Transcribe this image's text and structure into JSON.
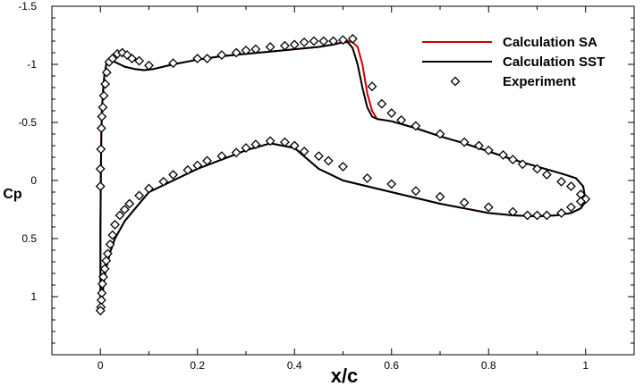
{
  "chart_data": {
    "type": "line",
    "title": "",
    "xlabel": "x/c",
    "ylabel": "Cp",
    "xlim": [
      -0.1,
      1.1
    ],
    "ylim": [
      1.5,
      -1.5
    ],
    "y_inverted": true,
    "grid": false,
    "x_ticks": [
      {
        "value": 0,
        "label": "0"
      },
      {
        "value": 0.2,
        "label": "0.2"
      },
      {
        "value": 0.4,
        "label": "0.4"
      },
      {
        "value": 0.6,
        "label": "0.6"
      },
      {
        "value": 0.8,
        "label": "0.8"
      },
      {
        "value": 1,
        "label": "1"
      }
    ],
    "y_ticks": [
      {
        "value": -1.5,
        "label": "-1.5"
      },
      {
        "value": -1,
        "label": "-1"
      },
      {
        "value": -0.5,
        "label": "-0.5"
      },
      {
        "value": 0,
        "label": "0"
      },
      {
        "value": 0.5,
        "label": "0.5"
      },
      {
        "value": 1,
        "label": "1"
      }
    ],
    "legend_position": "top-right",
    "series": [
      {
        "name": "Calculation SA",
        "kind": "line",
        "color": "#cc0000",
        "x": [
          0.0,
          0.0,
          0.001,
          0.002,
          0.003,
          0.005,
          0.008,
          0.012,
          0.018,
          0.03,
          0.05,
          0.07,
          0.09,
          0.11,
          0.15,
          0.2,
          0.25,
          0.3,
          0.35,
          0.4,
          0.45,
          0.48,
          0.5,
          0.51,
          0.52,
          0.53,
          0.54,
          0.55,
          0.56,
          0.57,
          0.6,
          0.65,
          0.7,
          0.75,
          0.8,
          0.85,
          0.9,
          0.95,
          0.98,
          0.995,
          1.0,
          0.99,
          0.97,
          0.94,
          0.9,
          0.85,
          0.8,
          0.75,
          0.7,
          0.65,
          0.6,
          0.55,
          0.5,
          0.45,
          0.4,
          0.35,
          0.3,
          0.25,
          0.2,
          0.15,
          0.1,
          0.07,
          0.05,
          0.03,
          0.02,
          0.012,
          0.008,
          0.005,
          0.003,
          0.001,
          0.0
        ],
        "y": [
          1.15,
          0.4,
          -0.1,
          -0.4,
          -0.6,
          -0.75,
          -0.9,
          -1.0,
          -1.05,
          -1.02,
          -0.98,
          -0.96,
          -0.95,
          -0.96,
          -1.0,
          -1.04,
          -1.07,
          -1.09,
          -1.11,
          -1.13,
          -1.15,
          -1.17,
          -1.19,
          -1.2,
          -1.19,
          -1.15,
          -1.0,
          -0.75,
          -0.6,
          -0.53,
          -0.51,
          -0.45,
          -0.38,
          -0.32,
          -0.25,
          -0.18,
          -0.12,
          -0.06,
          -0.02,
          0.05,
          0.18,
          0.24,
          0.28,
          0.3,
          0.31,
          0.3,
          0.28,
          0.24,
          0.2,
          0.15,
          0.1,
          0.05,
          0.0,
          -0.1,
          -0.28,
          -0.32,
          -0.26,
          -0.18,
          -0.1,
          0.0,
          0.1,
          0.25,
          0.35,
          0.5,
          0.62,
          0.75,
          0.85,
          0.95,
          1.03,
          1.1,
          1.15
        ]
      },
      {
        "name": "Calculation SST",
        "kind": "line",
        "color": "#000000",
        "x": [
          0.0,
          0.0,
          0.001,
          0.002,
          0.003,
          0.005,
          0.008,
          0.012,
          0.018,
          0.03,
          0.05,
          0.07,
          0.09,
          0.11,
          0.15,
          0.2,
          0.25,
          0.3,
          0.35,
          0.4,
          0.45,
          0.48,
          0.5,
          0.51,
          0.52,
          0.53,
          0.54,
          0.55,
          0.56,
          0.57,
          0.6,
          0.65,
          0.7,
          0.75,
          0.8,
          0.85,
          0.9,
          0.95,
          0.98,
          0.995,
          1.0,
          0.99,
          0.97,
          0.94,
          0.9,
          0.85,
          0.8,
          0.75,
          0.7,
          0.65,
          0.6,
          0.55,
          0.5,
          0.45,
          0.4,
          0.35,
          0.3,
          0.25,
          0.2,
          0.15,
          0.1,
          0.07,
          0.05,
          0.03,
          0.02,
          0.012,
          0.008,
          0.005,
          0.003,
          0.001,
          0.0
        ],
        "y": [
          1.15,
          0.4,
          -0.1,
          -0.4,
          -0.6,
          -0.75,
          -0.9,
          -1.0,
          -1.05,
          -1.02,
          -0.98,
          -0.96,
          -0.95,
          -0.96,
          -1.0,
          -1.04,
          -1.07,
          -1.09,
          -1.11,
          -1.13,
          -1.15,
          -1.17,
          -1.19,
          -1.19,
          -1.14,
          -1.0,
          -0.8,
          -0.63,
          -0.55,
          -0.53,
          -0.51,
          -0.45,
          -0.38,
          -0.32,
          -0.25,
          -0.18,
          -0.12,
          -0.06,
          -0.02,
          0.05,
          0.18,
          0.24,
          0.28,
          0.3,
          0.31,
          0.3,
          0.28,
          0.24,
          0.2,
          0.15,
          0.1,
          0.05,
          0.0,
          -0.1,
          -0.28,
          -0.32,
          -0.26,
          -0.18,
          -0.1,
          0.0,
          0.1,
          0.25,
          0.35,
          0.5,
          0.62,
          0.75,
          0.85,
          0.95,
          1.03,
          1.1,
          1.15
        ]
      },
      {
        "name": "Experiment",
        "kind": "scatter",
        "marker": "diamond",
        "color": "#000000",
        "x": [
          0.0,
          0.0,
          0.001,
          0.002,
          0.003,
          0.005,
          0.007,
          0.01,
          0.013,
          0.018,
          0.025,
          0.035,
          0.045,
          0.055,
          0.065,
          0.08,
          0.1,
          0.15,
          0.2,
          0.22,
          0.25,
          0.28,
          0.3,
          0.32,
          0.35,
          0.38,
          0.4,
          0.42,
          0.44,
          0.46,
          0.48,
          0.5,
          0.52,
          0.56,
          0.58,
          0.6,
          0.62,
          0.65,
          0.7,
          0.75,
          0.78,
          0.8,
          0.83,
          0.85,
          0.87,
          0.9,
          0.92,
          0.95,
          0.97,
          0.99,
          1.0,
          0.99,
          0.97,
          0.95,
          0.92,
          0.9,
          0.88,
          0.85,
          0.8,
          0.75,
          0.7,
          0.65,
          0.6,
          0.55,
          0.5,
          0.47,
          0.45,
          0.42,
          0.4,
          0.38,
          0.35,
          0.32,
          0.3,
          0.28,
          0.25,
          0.22,
          0.2,
          0.18,
          0.15,
          0.13,
          0.1,
          0.08,
          0.06,
          0.05,
          0.04,
          0.03,
          0.025,
          0.02,
          0.015,
          0.012,
          0.009,
          0.006,
          0.004,
          0.003,
          0.002,
          0.001,
          0.0
        ],
        "y": [
          -0.1,
          0.05,
          -0.27,
          -0.45,
          -0.55,
          -0.63,
          -0.73,
          -0.83,
          -0.93,
          -1.02,
          -1.05,
          -1.09,
          -1.1,
          -1.08,
          -1.05,
          -1.03,
          -0.99,
          -1.01,
          -1.05,
          -1.05,
          -1.08,
          -1.1,
          -1.12,
          -1.13,
          -1.15,
          -1.16,
          -1.17,
          -1.19,
          -1.2,
          -1.2,
          -1.2,
          -1.21,
          -1.22,
          -0.81,
          -0.66,
          -0.58,
          -0.52,
          -0.47,
          -0.4,
          -0.33,
          -0.3,
          -0.26,
          -0.22,
          -0.18,
          -0.14,
          -0.1,
          -0.05,
          0.01,
          0.05,
          0.12,
          0.16,
          0.18,
          0.23,
          0.28,
          0.3,
          0.3,
          0.3,
          0.27,
          0.23,
          0.19,
          0.14,
          0.09,
          0.03,
          -0.02,
          -0.12,
          -0.17,
          -0.21,
          -0.25,
          -0.3,
          -0.33,
          -0.34,
          -0.31,
          -0.28,
          -0.24,
          -0.21,
          -0.17,
          -0.13,
          -0.09,
          -0.05,
          0.01,
          0.07,
          0.13,
          0.2,
          0.25,
          0.3,
          0.38,
          0.47,
          0.55,
          0.63,
          0.69,
          0.76,
          0.83,
          0.89,
          0.97,
          1.03,
          1.09,
          1.12
        ]
      }
    ]
  }
}
